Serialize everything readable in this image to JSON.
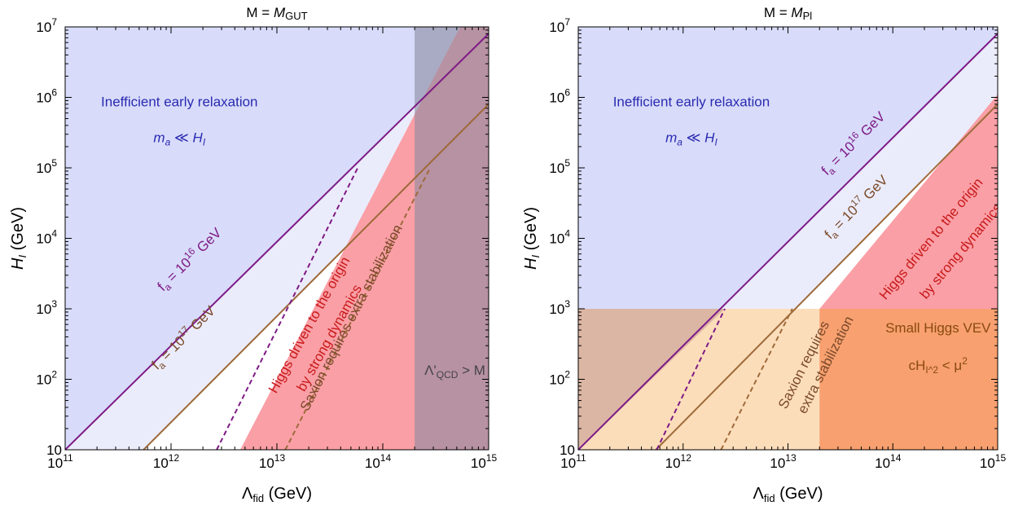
{
  "chart_data": [
    {
      "type": "area",
      "title": {
        "pre": "M = ",
        "main": "M",
        "sub": "GUT"
      },
      "xlabel": {
        "main": "Λ",
        "sub": "fid",
        "unit": "(GeV)"
      },
      "ylabel": {
        "main": "H",
        "sub": "I",
        "unit": "(GeV)"
      },
      "xscale": "log",
      "yscale": "log",
      "xlim": [
        100000000000.0,
        1000000000000000.0
      ],
      "ylim": [
        10,
        10000000.0
      ],
      "x_ticks": [
        {
          "base": "10",
          "exp": "11"
        },
        {
          "base": "10",
          "exp": "12"
        },
        {
          "base": "10",
          "exp": "13"
        },
        {
          "base": "10",
          "exp": "14"
        },
        {
          "base": "10",
          "exp": "15"
        }
      ],
      "y_ticks": [
        {
          "base": "10",
          "exp": ""
        },
        {
          "base": "10",
          "exp": "2"
        },
        {
          "base": "10",
          "exp": "3"
        },
        {
          "base": "10",
          "exp": "4"
        },
        {
          "base": "10",
          "exp": "5"
        },
        {
          "base": "10",
          "exp": "6"
        },
        {
          "base": "10",
          "exp": "7"
        }
      ],
      "regions": [
        {
          "name": "inefficient-early-relaxation",
          "color": "#d8dcfa",
          "vertices": [
            [
              100000000000.0,
              10
            ],
            [
              1000000000000000.0,
              8000000.0
            ],
            [
              1000000000000000.0,
              10000000.0
            ],
            [
              100000000000.0,
              10000000.0
            ]
          ]
        },
        {
          "name": "light-band",
          "color": "#ebecfb",
          "vertices": [
            [
              550000000000.0,
              10
            ],
            [
              1000000000000000.0,
              800000.0
            ],
            [
              1000000000000000.0,
              8000000.0
            ],
            [
              100000000000.0,
              10
            ]
          ]
        },
        {
          "name": "higgs-strong-dynamics",
          "color": "#fa9fa6",
          "vertices": [
            [
              4600000000000.0,
              10
            ],
            [
              1000000000000000.0,
              10
            ],
            [
              1000000000000000.0,
              60000000.0
            ],
            [
              4500000000000.0,
              10
            ]
          ]
        },
        {
          "name": "lambda-qcd-gt-m",
          "color": "#8a8aa0",
          "opacity": 0.6,
          "vertices": [
            [
              200000000000000.0,
              10
            ],
            [
              1000000000000000.0,
              10
            ],
            [
              1000000000000000.0,
              10000000.0
            ],
            [
              200000000000000.0,
              10000000.0
            ]
          ]
        }
      ],
      "lines": [
        {
          "name": "fa-1e16",
          "color": "#7e1a86",
          "dashed": false,
          "points": [
            [
              100000000000.0,
              10
            ],
            [
              1000000000000000.0,
              8000000.0
            ]
          ]
        },
        {
          "name": "fa-1e17",
          "color": "#9e6a3a",
          "dashed": false,
          "points": [
            [
              550000000000.0,
              10
            ],
            [
              1000000000000000.0,
              800000.0
            ]
          ]
        },
        {
          "name": "fa-1e16-dashed",
          "color": "#7e1a86",
          "dashed": true,
          "points": [
            [
              2700000000000.0,
              10
            ],
            [
              58000000000000.0,
              100000.0
            ]
          ]
        },
        {
          "name": "fa-1e17-dashed",
          "color": "#9e6a3a",
          "dashed": true,
          "points": [
            [
              12000000000000.0,
              10
            ],
            [
              280000000000000.0,
              100000.0
            ]
          ]
        }
      ],
      "labels": [
        {
          "text": "Inefficient early relaxation",
          "color": "#2a2ab0",
          "x": 1200000000000.0,
          "y": 750000.0,
          "rotate": false
        },
        {
          "text": "m_a ≪ H_I",
          "color": "#2a2ab0",
          "x": 1200000000000.0,
          "y": 230000.0,
          "rotate": false,
          "italic": true
        },
        {
          "text": "f_a = 10^16 GeV",
          "color": "#7e1a86",
          "x": 1600000000000.0,
          "y": 4500.0,
          "rotate": true,
          "slope_pts": [
            [
              100000000000.0,
              10
            ],
            [
              1000000000000000.0,
              8000000.0
            ]
          ]
        },
        {
          "text": "f_a = 10^17 GeV",
          "color": "#7a4a2a",
          "x": 1400000000000.0,
          "y": 350.0,
          "rotate": true,
          "slope_pts": [
            [
              550000000000.0,
              10
            ],
            [
              1000000000000000.0,
              800000.0
            ]
          ]
        },
        {
          "text": "Higgs driven to the origin",
          "color": "#c81a1a",
          "x": 22000000000000.0,
          "y": 550.0,
          "rotate": true,
          "slope_pts": [
            [
              4500000000000.0,
              10
            ],
            [
              600000000000000.0,
              6000000.0
            ]
          ]
        },
        {
          "text": "by strong dynamics",
          "color": "#c81a1a",
          "x": 34000000000000.0,
          "y": 360.0,
          "rotate": true,
          "slope_pts": [
            [
              4500000000000.0,
              10
            ],
            [
              600000000000000.0,
              6000000.0
            ]
          ]
        },
        {
          "text": "Saxion requires extra stabilization",
          "color": "#7a4a2a",
          "x": 55000000000000.0,
          "y": 700.0,
          "rotate": true,
          "slope_pts": [
            [
              12000000000000.0,
              10
            ],
            [
              280000000000000.0,
              100000.0
            ]
          ]
        },
        {
          "text": "Λ'_QCD > M",
          "color": "#444444",
          "x": 480000000000000.0,
          "y": 115.0,
          "rotate": false
        }
      ]
    },
    {
      "type": "area",
      "title": {
        "pre": "M = ",
        "main": "M",
        "sub": "Pl"
      },
      "xlabel": {
        "main": "Λ",
        "sub": "fid",
        "unit": "(GeV)"
      },
      "ylabel": {
        "main": "H",
        "sub": "I",
        "unit": "(GeV)"
      },
      "xscale": "log",
      "yscale": "log",
      "xlim": [
        100000000000.0,
        1000000000000000.0
      ],
      "ylim": [
        10,
        10000000.0
      ],
      "x_ticks": [
        {
          "base": "10",
          "exp": "11"
        },
        {
          "base": "10",
          "exp": "12"
        },
        {
          "base": "10",
          "exp": "13"
        },
        {
          "base": "10",
          "exp": "14"
        },
        {
          "base": "10",
          "exp": "15"
        }
      ],
      "y_ticks": [
        {
          "base": "10",
          "exp": ""
        },
        {
          "base": "10",
          "exp": "2"
        },
        {
          "base": "10",
          "exp": "3"
        },
        {
          "base": "10",
          "exp": "4"
        },
        {
          "base": "10",
          "exp": "5"
        },
        {
          "base": "10",
          "exp": "6"
        },
        {
          "base": "10",
          "exp": "7"
        }
      ],
      "regions": [
        {
          "name": "inefficient-early-relaxation",
          "color": "#d8dcfa",
          "vertices": [
            [
              100000000000.0,
              10
            ],
            [
              1000000000000000.0,
              8000000.0
            ],
            [
              1000000000000000.0,
              10000000.0
            ],
            [
              100000000000.0,
              10000000.0
            ]
          ]
        },
        {
          "name": "light-band",
          "color": "#ebecfb",
          "vertices": [
            [
              550000000000.0,
              10
            ],
            [
              1000000000000000.0,
              800000.0
            ],
            [
              1000000000000000.0,
              8000000.0
            ],
            [
              100000000000.0,
              10
            ]
          ]
        },
        {
          "name": "higgs-strong-dynamics",
          "color": "#fa9fa6",
          "vertices": [
            [
              20000000000000.0,
              1000.0
            ],
            [
              1000000000000000.0,
              1000.0
            ],
            [
              1000000000000000.0,
              1100000.0
            ]
          ]
        },
        {
          "name": "small-higgs-vev",
          "color": "#fcddba",
          "vertices": [
            [
              100000000000.0,
              10
            ],
            [
              1000000000000000.0,
              10
            ],
            [
              1000000000000000.0,
              1000.0
            ],
            [
              100000000000.0,
              1000.0
            ]
          ]
        },
        {
          "name": "small-higgs-vev-strong-overlap",
          "color": "#f8a06f",
          "vertices": [
            [
              20000000000000.0,
              10
            ],
            [
              1000000000000000.0,
              10
            ],
            [
              1000000000000000.0,
              1000.0
            ],
            [
              20000000000000.0,
              1000.0
            ]
          ]
        },
        {
          "name": "small-higgs-vev-early-overlap",
          "color": "#dcb6a4",
          "vertices": [
            [
              100000000000.0,
              10
            ],
            [
              2500000000000.0,
              1000.0
            ],
            [
              100000000000.0,
              1000.0
            ]
          ]
        }
      ],
      "lines": [
        {
          "name": "fa-1e16",
          "color": "#7e1a86",
          "dashed": false,
          "points": [
            [
              100000000000.0,
              10
            ],
            [
              1000000000000000.0,
              8000000.0
            ]
          ]
        },
        {
          "name": "fa-1e17",
          "color": "#9e6a3a",
          "dashed": false,
          "points": [
            [
              550000000000.0,
              10
            ],
            [
              1000000000000000.0,
              800000.0
            ]
          ]
        },
        {
          "name": "fa-1e16-dashed",
          "color": "#7e1a86",
          "dashed": true,
          "points": [
            [
              560000000000.0,
              10
            ],
            [
              2500000000000.0,
              1000.0
            ]
          ]
        },
        {
          "name": "fa-1e17-dashed",
          "color": "#9e6a3a",
          "dashed": true,
          "points": [
            [
              2300000000000.0,
              10
            ],
            [
              11000000000000.0,
              1000.0
            ]
          ]
        }
      ],
      "labels": [
        {
          "text": "Inefficient early relaxation",
          "color": "#2a2ab0",
          "x": 1200000000000.0,
          "y": 750000.0,
          "rotate": false
        },
        {
          "text": "m_a ≪ H_I",
          "color": "#2a2ab0",
          "x": 1200000000000.0,
          "y": 230000.0,
          "rotate": false,
          "italic": true
        },
        {
          "text": "f_a = 10^16 GeV",
          "color": "#7e1a86",
          "x": 45000000000000.0,
          "y": 200000.0,
          "rotate": true,
          "slope_pts": [
            [
              100000000000.0,
              10
            ],
            [
              1000000000000000.0,
              8000000.0
            ]
          ]
        },
        {
          "text": "f_a = 10^17 GeV",
          "color": "#7a4a2a",
          "x": 48000000000000.0,
          "y": 25000.0,
          "rotate": true,
          "slope_pts": [
            [
              550000000000.0,
              10
            ],
            [
              1000000000000000.0,
              800000.0
            ]
          ]
        },
        {
          "text": "Higgs driven to the origin",
          "color": "#c81a1a",
          "x": 250000000000000.0,
          "y": 9000.0,
          "rotate": true,
          "slope_pts": [
            [
              20000000000000.0,
              1000.0
            ],
            [
              1000000000000000.0,
              1100000.0
            ]
          ]
        },
        {
          "text": "by strong dynamics",
          "color": "#c81a1a",
          "x": 480000000000000.0,
          "y": 6000.0,
          "rotate": true,
          "slope_pts": [
            [
              20000000000000.0,
              1000.0
            ],
            [
              1000000000000000.0,
              1100000.0
            ]
          ]
        },
        {
          "text": "Saxion requires",
          "color": "#7a4a2a",
          "x": 15500000000000.0,
          "y": 150.0,
          "rotate": true,
          "slope_pts": [
            [
              2300000000000.0,
              10
            ],
            [
              11000000000000.0,
              1000.0
            ]
          ]
        },
        {
          "text": "extra stabilization",
          "color": "#7a4a2a",
          "x": 25000000000000.0,
          "y": 150.0,
          "rotate": true,
          "slope_pts": [
            [
              2300000000000.0,
              10
            ],
            [
              11000000000000.0,
              1000.0
            ]
          ]
        },
        {
          "text": "Small Higgs VEV",
          "color": "#8a4a10",
          "x": 270000000000000.0,
          "y": 460.0,
          "rotate": false
        },
        {
          "text": "cH_I^2 < μ^2",
          "color": "#8a4a10",
          "x": 270000000000000.0,
          "y": 135.0,
          "rotate": false
        }
      ]
    }
  ]
}
